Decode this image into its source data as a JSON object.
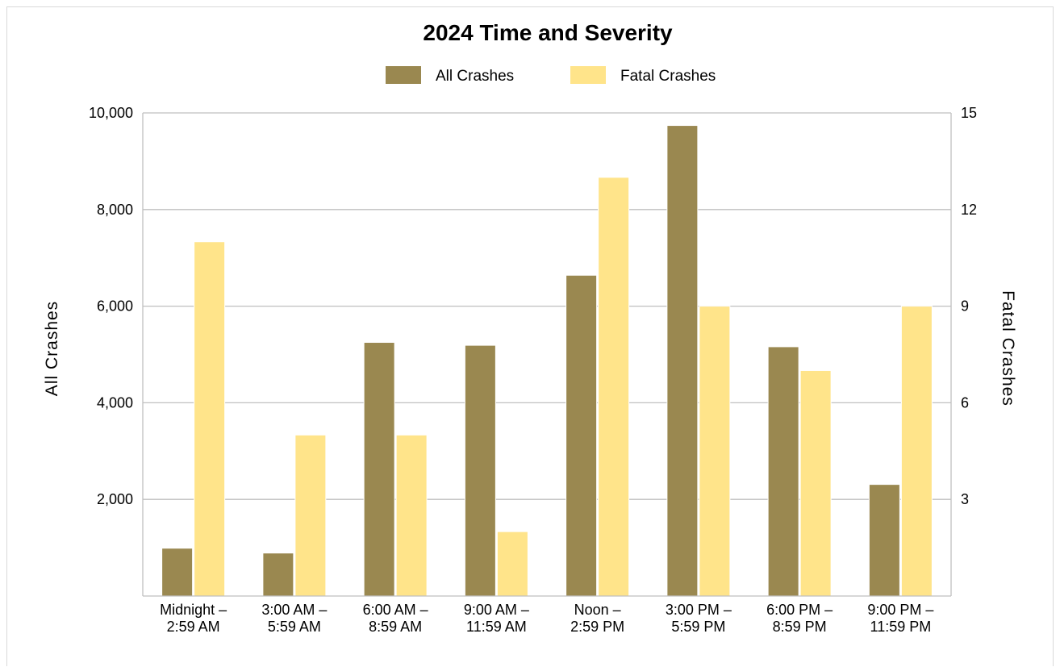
{
  "chart_data": {
    "type": "bar",
    "title": "2024 Time and Severity",
    "categories": [
      [
        "Midnight –",
        "2:59 AM"
      ],
      [
        "3:00 AM –",
        "5:59 AM"
      ],
      [
        "6:00 AM –",
        "8:59 AM"
      ],
      [
        "9:00 AM –",
        "11:59 AM"
      ],
      [
        "Noon –",
        "2:59 PM"
      ],
      [
        "3:00 PM –",
        "5:59 PM"
      ],
      [
        "6:00 PM –",
        "8:59 PM"
      ],
      [
        "9:00 PM –",
        "11:59 PM"
      ]
    ],
    "series": [
      {
        "name": "All Crashes",
        "axis": "left",
        "color": "#9a8850",
        "values": [
          990,
          890,
          5250,
          5190,
          6640,
          9740,
          5160,
          2310
        ]
      },
      {
        "name": "Fatal Crashes",
        "axis": "right",
        "color": "#ffe48a",
        "values": [
          11,
          5,
          5,
          2,
          13,
          9,
          7,
          9
        ]
      }
    ],
    "ylabel": "All Crashes",
    "y2label": "Fatal Crashes",
    "ylim": [
      0,
      10000
    ],
    "y2lim": [
      0,
      15
    ],
    "yticks": [
      "2,000",
      "4,000",
      "6,000",
      "8,000",
      "10,000"
    ],
    "yticks_values": [
      2000,
      4000,
      6000,
      8000,
      10000
    ],
    "y2ticks": [
      "3",
      "6",
      "9",
      "12",
      "15"
    ],
    "y2ticks_values": [
      3,
      6,
      9,
      12,
      15
    ],
    "grid": true,
    "legend": "top-center",
    "gridline_color": "#bfbfbf",
    "axis_color": "#bfbfbf"
  }
}
